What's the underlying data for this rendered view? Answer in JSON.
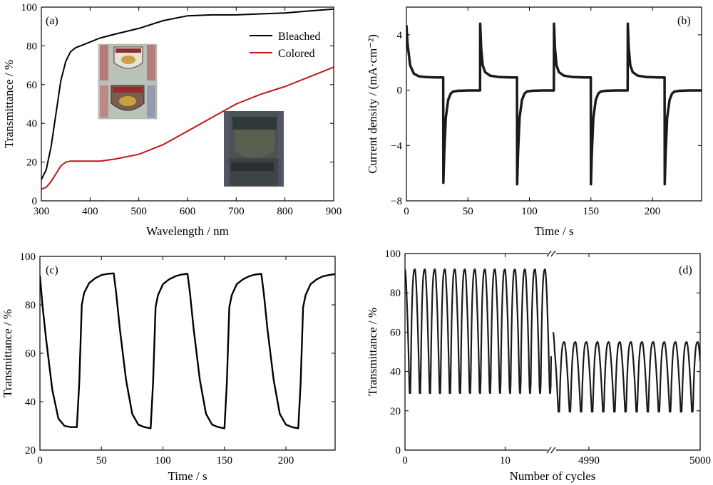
{
  "chart_data": [
    {
      "panel": "(a)",
      "type": "line",
      "xlabel": "Wavelength / nm",
      "ylabel": "Transmittance / %",
      "xlim": [
        300,
        900
      ],
      "ylim": [
        0,
        100
      ],
      "xticks": [
        300,
        400,
        500,
        600,
        700,
        800,
        900
      ],
      "yticks": [
        0,
        20,
        40,
        60,
        80,
        100
      ],
      "legend_position": "top-right",
      "series": [
        {
          "name": "Bleached",
          "color": "#000000",
          "x": [
            300,
            310,
            320,
            330,
            340,
            350,
            360,
            370,
            380,
            400,
            420,
            450,
            500,
            550,
            600,
            650,
            700,
            750,
            800,
            850,
            900
          ],
          "y": [
            11,
            16,
            28,
            45,
            62,
            72,
            77,
            79,
            80,
            82,
            84,
            86,
            89,
            93,
            95.5,
            96,
            96,
            96.5,
            97,
            98,
            99
          ]
        },
        {
          "name": "Colored",
          "color": "#c0171b",
          "x": [
            300,
            310,
            320,
            330,
            340,
            350,
            360,
            370,
            380,
            400,
            420,
            450,
            500,
            550,
            600,
            650,
            700,
            750,
            800,
            850,
            900
          ],
          "y": [
            6,
            7,
            10,
            14,
            18,
            20,
            20.5,
            20.5,
            20.5,
            20.5,
            20.5,
            21.5,
            24,
            29,
            36,
            43,
            50,
            55,
            59,
            64,
            69
          ]
        }
      ],
      "insets": [
        "bleached-device-photo",
        "colored-device-photo"
      ]
    },
    {
      "panel": "(b)",
      "type": "line",
      "xlabel": "Time / s",
      "ylabel": "Current density / (mA·cm⁻²)",
      "xlim": [
        0,
        240
      ],
      "ylim": [
        -8,
        6
      ],
      "xticks": [
        0,
        50,
        100,
        150,
        200
      ],
      "yticks": [
        -8,
        -4,
        0,
        4
      ],
      "series": [
        {
          "color": "#1a1a1a",
          "x": [
            0,
            1,
            3,
            6,
            10,
            15,
            20,
            25,
            29.9,
            30,
            30.8,
            32,
            34,
            36,
            38,
            42,
            50,
            59.9,
            60,
            60.8,
            62,
            64,
            68,
            75,
            85,
            89.9,
            90,
            90.8,
            92,
            94,
            96,
            98,
            102,
            110,
            119.9,
            120,
            120.8,
            122,
            124,
            128,
            135,
            145,
            149.9,
            150,
            150.8,
            152,
            154,
            156,
            158,
            162,
            170,
            179.9,
            180,
            180.8,
            182,
            184,
            188,
            195,
            205,
            209.9,
            210,
            210.8,
            212,
            214,
            216,
            218,
            222,
            230,
            240
          ],
          "y": [
            4.7,
            3.3,
            1.8,
            1.2,
            1.0,
            0.95,
            0.93,
            0.92,
            0.92,
            -6.7,
            -4.5,
            -2.0,
            -0.7,
            -0.25,
            -0.1,
            -0.05,
            -0.02,
            -0.02,
            4.8,
            3.0,
            1.8,
            1.3,
            1.05,
            0.95,
            0.92,
            0.92,
            -6.8,
            -4.5,
            -2.0,
            -0.7,
            -0.25,
            -0.1,
            -0.05,
            -0.02,
            -0.02,
            4.8,
            3.0,
            1.8,
            1.3,
            1.05,
            0.95,
            0.92,
            0.92,
            -6.8,
            -4.5,
            -2.0,
            -0.7,
            -0.25,
            -0.1,
            -0.05,
            -0.02,
            -0.02,
            4.8,
            3.0,
            1.8,
            1.3,
            1.05,
            0.95,
            0.92,
            0.92,
            -6.8,
            -4.5,
            -2.0,
            -0.7,
            -0.25,
            -0.1,
            -0.05,
            -0.02,
            -0.02
          ]
        }
      ]
    },
    {
      "panel": "(c)",
      "type": "line",
      "xlabel": "Time / s",
      "ylabel": "Transmittance / %",
      "xlim": [
        0,
        240
      ],
      "ylim": [
        20,
        100
      ],
      "xticks": [
        0,
        50,
        100,
        150,
        200
      ],
      "yticks": [
        20,
        40,
        60,
        80,
        100
      ],
      "series": [
        {
          "color": "#000000",
          "x": [
            0,
            2,
            5,
            10,
            15,
            20,
            25,
            30,
            32,
            34,
            36,
            40,
            45,
            50,
            55,
            60,
            62,
            65,
            70,
            75,
            80,
            85,
            90,
            92,
            94,
            96,
            100,
            105,
            110,
            115,
            120,
            122,
            125,
            130,
            135,
            140,
            145,
            150,
            152,
            154,
            156,
            160,
            165,
            170,
            175,
            180,
            182,
            185,
            190,
            195,
            200,
            205,
            210,
            212,
            214,
            216,
            220,
            225,
            230,
            235,
            240
          ],
          "y": [
            92,
            80,
            66,
            45,
            33,
            30,
            29.5,
            29.5,
            48,
            80,
            85,
            89,
            91,
            92.3,
            92.8,
            93,
            85,
            70,
            49,
            35,
            30.5,
            29.5,
            29,
            48,
            79,
            84,
            88.5,
            90.5,
            91.8,
            92.5,
            92.8,
            85,
            70,
            49,
            35,
            30.5,
            29.5,
            29,
            48,
            79,
            84,
            88.5,
            90.5,
            91.8,
            92.5,
            92.8,
            85,
            70,
            49,
            35,
            30.5,
            29.5,
            29,
            48,
            79,
            84,
            88.5,
            90.5,
            91.8,
            92.3,
            92.7
          ]
        }
      ]
    },
    {
      "panel": "(d)",
      "type": "line",
      "xlabel": "Number of cycles",
      "ylabel": "Transmittance / %",
      "ylim": [
        0,
        100
      ],
      "xticks": [
        "0",
        "10",
        "4990",
        "5000"
      ],
      "yticks": [
        0,
        20,
        40,
        60,
        80,
        100
      ],
      "axis_break": "between 14 and 4987",
      "segments": [
        {
          "x_from": 0,
          "x_to": 14.6,
          "peaks": 92,
          "troughs": 29,
          "cycles": 14.6
        },
        {
          "x_from": 4986.8,
          "x_to": 5000,
          "start": 60,
          "peaks": 55,
          "troughs": 19.5,
          "cycles": 13.2
        }
      ]
    }
  ]
}
